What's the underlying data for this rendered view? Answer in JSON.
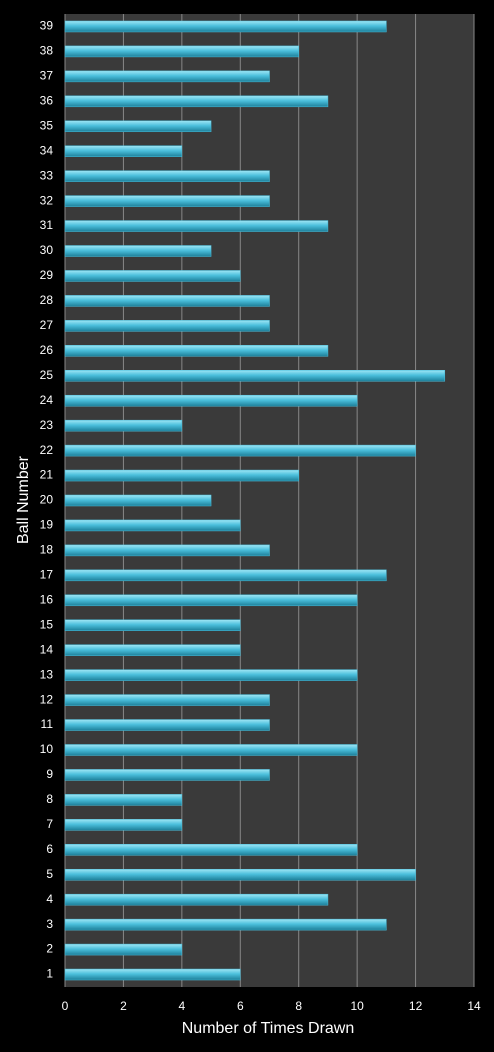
{
  "chart_data": {
    "type": "bar",
    "orientation": "horizontal",
    "xlabel": "Number of Times Drawn",
    "ylabel": "Ball Number",
    "categories": [
      "1",
      "2",
      "3",
      "4",
      "5",
      "6",
      "7",
      "8",
      "9",
      "10",
      "11",
      "12",
      "13",
      "14",
      "15",
      "16",
      "17",
      "18",
      "19",
      "20",
      "21",
      "22",
      "23",
      "24",
      "25",
      "26",
      "27",
      "28",
      "29",
      "30",
      "31",
      "32",
      "33",
      "34",
      "35",
      "36",
      "37",
      "38",
      "39"
    ],
    "values": [
      6,
      4,
      11,
      9,
      12,
      10,
      4,
      4,
      7,
      10,
      7,
      7,
      10,
      6,
      6,
      10,
      11,
      7,
      6,
      5,
      8,
      12,
      4,
      10,
      13,
      9,
      7,
      7,
      6,
      5,
      9,
      7,
      7,
      4,
      5,
      9,
      7,
      8,
      11
    ],
    "color": "#4bbfdc",
    "xlim": [
      0,
      14
    ],
    "xticks": [
      0,
      2,
      4,
      6,
      8,
      10,
      12,
      14
    ],
    "grid": true
  }
}
